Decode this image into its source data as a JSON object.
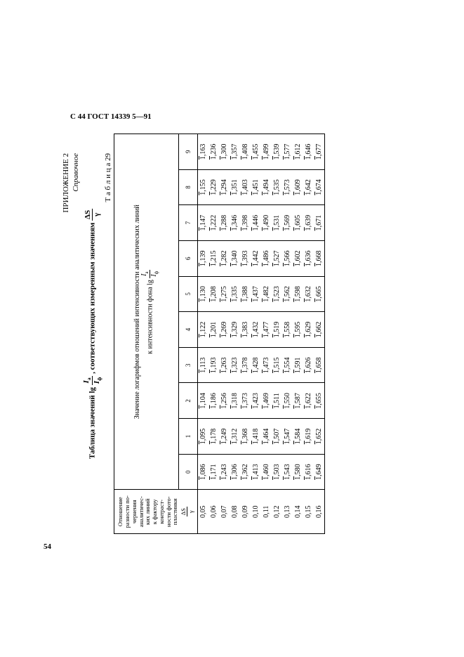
{
  "page": {
    "header": "С 44 ГОСТ 14339 5—91",
    "footer_number": "54"
  },
  "appendix": {
    "line1_prefix": "ПРИЛОЖЕНИЕ ",
    "line1_num": "2",
    "line2": "Справочное"
  },
  "title": {
    "prefix": "Таблица значений lg ",
    "mid": ", соответствующих измеренным значениям ",
    "frac1_num": "Iа",
    "frac1_den": "Iф",
    "frac2_num": "ΔS",
    "frac2_den": "γ"
  },
  "table_label": "Т а б л и ц а 29",
  "row_header": {
    "l1": "Отношение",
    "l2": "разности по-",
    "l3": "чернения",
    "l4": "аналитичес-",
    "l5": "ких линий",
    "l6": "к фактору",
    "l7": "контраст-",
    "l8": "ности фото-",
    "l9": "пластинки",
    "frac_num": "ΔS",
    "frac_den": "γ"
  },
  "span_header": {
    "l1": "Значение логарифмов отношений интенсивности аналитических линий",
    "l2_prefix": "к интенсивности фона lg ",
    "frac_num": "Iа",
    "frac_den": "Iф"
  },
  "cols": [
    "0",
    "1",
    "2",
    "3",
    "4",
    "5",
    "6",
    "7",
    "8",
    "9"
  ],
  "firstcol": [
    "0,05",
    "0,06",
    "0,07",
    "0,08",
    "0,09",
    "0,10",
    "0,11",
    "0,12",
    "0,13",
    "0,14",
    "0,15",
    "0,16"
  ],
  "rows": [
    [
      "1,086",
      "1,095",
      "1,104",
      "1,113",
      "1,122",
      "1,130",
      "1,139",
      "1,147",
      "1,155",
      "1,163"
    ],
    [
      "1,171",
      "1,178",
      "1,186",
      "1,193",
      "1,201",
      "1,208",
      "1,215",
      "1,222",
      "1,229",
      "1,236"
    ],
    [
      "1,243",
      "1,249",
      "1,256",
      "1,263",
      "1,269",
      "1,275",
      "1,282",
      "1,288",
      "1,294",
      "1,300"
    ],
    [
      "1,306",
      "1,312",
      "1,318",
      "1,323",
      "1,329",
      "1,335",
      "1,340",
      "1,346",
      "1,351",
      "1,357"
    ],
    [
      "1,362",
      "1,368",
      "1,373",
      "1,378",
      "1,383",
      "1,388",
      "1,393",
      "1,398",
      "1,403",
      "1,408"
    ],
    [
      "1,413",
      "1,418",
      "1,423",
      "1,428",
      "1,432",
      "1,437",
      "1,442",
      "1,446",
      "1,451",
      "1,455"
    ],
    [
      "1,460",
      "1,464",
      "1,469",
      "1,473",
      "1,477",
      "1,482",
      "1,486",
      "1,490",
      "1,494",
      "1,499"
    ],
    [
      "1,503",
      "1,507",
      "1,511",
      "1,515",
      "1,519",
      "1,523",
      "1,527",
      "1,531",
      "1,535",
      "1,539"
    ],
    [
      "1,543",
      "1,547",
      "1,550",
      "1,554",
      "1,558",
      "1,562",
      "1,566",
      "1,569",
      "1,573",
      "1,577"
    ],
    [
      "1,580",
      "1,584",
      "1,587",
      "1,591",
      "1,595",
      "1,598",
      "1,602",
      "1,605",
      "1,609",
      "1,612"
    ],
    [
      "1,616",
      "1,619",
      "1,622",
      "1,626",
      "1,629",
      "1,632",
      "1,636",
      "1,639",
      "1,642",
      "1,646"
    ],
    [
      "1,649",
      "1,652",
      "1,655",
      "1,658",
      "1,662",
      "1,665",
      "1,668",
      "1,671",
      "1,674",
      "1,677"
    ]
  ]
}
